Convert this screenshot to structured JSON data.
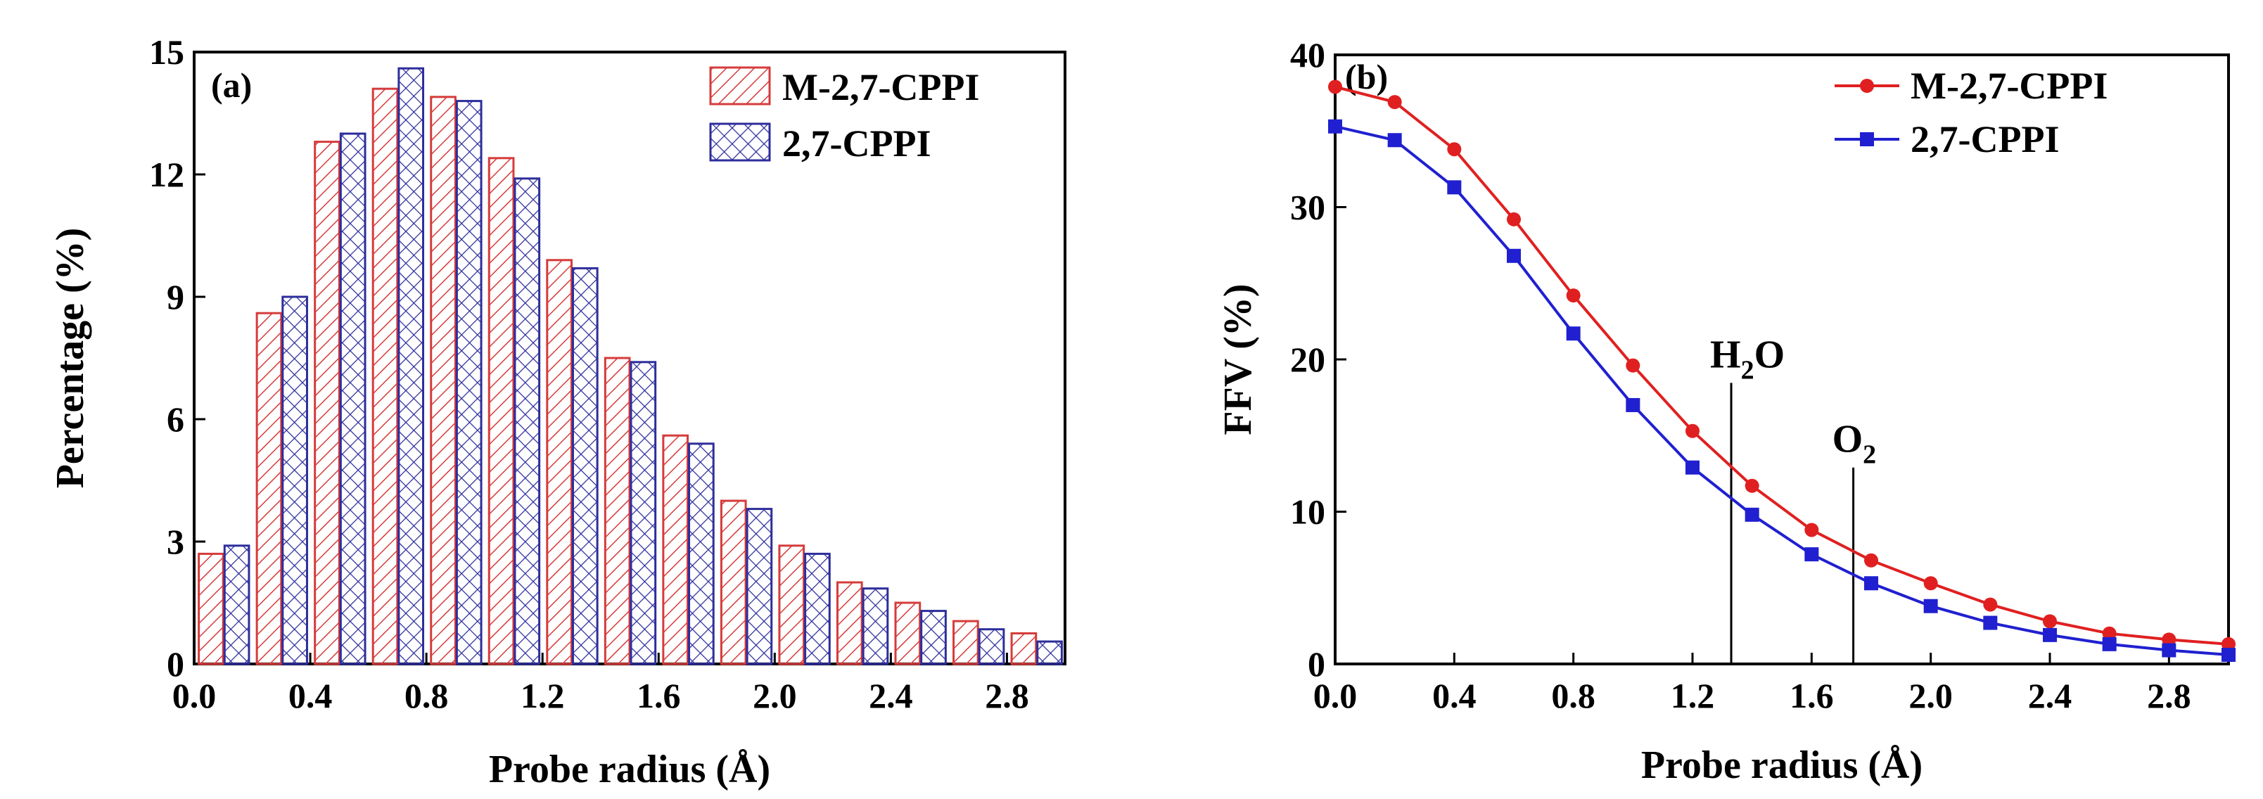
{
  "chart_data": [
    {
      "type": "bar",
      "panel_label": "(a)",
      "xlabel": "Probe radius (Å)",
      "ylabel": "Percentage (%)",
      "xlim": [
        0.0,
        3.0
      ],
      "ylim": [
        0,
        15
      ],
      "xticks": [
        "0.0",
        "0.4",
        "0.8",
        "1.2",
        "1.6",
        "2.0",
        "2.4",
        "2.8"
      ],
      "yticks": [
        "0",
        "3",
        "6",
        "9",
        "12",
        "15"
      ],
      "x": [
        0.1,
        0.3,
        0.5,
        0.7,
        0.9,
        1.1,
        1.3,
        1.5,
        1.7,
        1.9,
        2.1,
        2.3,
        2.5,
        2.7,
        2.9
      ],
      "series": [
        {
          "name": "M-2,7-CPPI",
          "color": "#d63b3b",
          "pattern": "diagonal-hatch",
          "values": [
            2.7,
            8.6,
            12.8,
            14.1,
            13.9,
            12.4,
            9.9,
            7.5,
            5.6,
            4.0,
            2.9,
            2.0,
            1.5,
            1.05,
            0.75
          ]
        },
        {
          "name": "2,7-CPPI",
          "color": "#2d2d9c",
          "pattern": "cross-hatch",
          "values": [
            2.9,
            9.0,
            13.0,
            14.6,
            13.8,
            11.9,
            9.7,
            7.4,
            5.4,
            3.8,
            2.7,
            1.85,
            1.3,
            0.85,
            0.55
          ]
        }
      ],
      "legend": "top-right"
    },
    {
      "type": "line",
      "panel_label": "(b)",
      "xlabel": "Probe radius (Å)",
      "ylabel": "FFV (%)",
      "xlim": [
        0.0,
        3.0
      ],
      "ylim": [
        0,
        40
      ],
      "xticks": [
        "0.0",
        "0.4",
        "0.8",
        "1.2",
        "1.6",
        "2.0",
        "2.4",
        "2.8"
      ],
      "yticks": [
        "0",
        "10",
        "20",
        "30",
        "40"
      ],
      "x": [
        0.0,
        0.2,
        0.4,
        0.6,
        0.8,
        1.0,
        1.2,
        1.4,
        1.6,
        1.8,
        2.0,
        2.2,
        2.4,
        2.6,
        2.8,
        3.0
      ],
      "series": [
        {
          "name": "M-2,7-CPPI",
          "color": "#e02020",
          "marker": "circle",
          "values": [
            37.9,
            36.9,
            33.8,
            29.2,
            24.2,
            19.6,
            15.3,
            11.7,
            8.8,
            6.8,
            5.3,
            3.9,
            2.8,
            2.0,
            1.6,
            1.3
          ]
        },
        {
          "name": "2,7-CPPI",
          "color": "#2020d0",
          "marker": "square",
          "values": [
            35.3,
            34.4,
            31.3,
            26.8,
            21.7,
            17.0,
            12.9,
            9.8,
            7.2,
            5.3,
            3.8,
            2.7,
            1.9,
            1.3,
            0.9,
            0.6
          ]
        }
      ],
      "annotations": [
        {
          "main": "H",
          "sub": "2",
          "tail": "O",
          "x": 1.33
        },
        {
          "main": "O",
          "sub": "2",
          "tail": "",
          "x": 1.74
        }
      ],
      "legend": "top-right"
    }
  ]
}
